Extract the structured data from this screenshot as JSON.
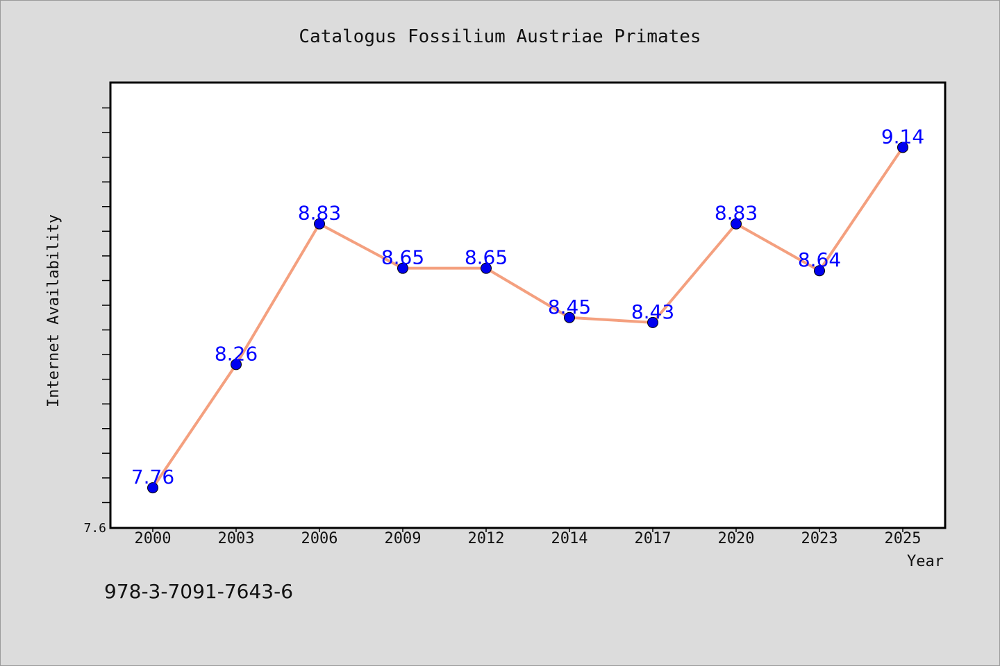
{
  "chart_data": {
    "type": "line",
    "title": "Catalogus Fossilium Austriae Primates",
    "xlabel": "Year",
    "ylabel": "Internet Availability",
    "categories": [
      "2000",
      "2003",
      "2006",
      "2009",
      "2012",
      "2014",
      "2017",
      "2020",
      "2023",
      "2025"
    ],
    "series": [
      {
        "values": [
          7.76,
          8.26,
          8.83,
          8.65,
          8.65,
          8.45,
          8.43,
          8.83,
          8.64,
          9.14
        ]
      }
    ],
    "data_labels": [
      "7.76",
      "8.26",
      "8.83",
      "8.65",
      "8.65",
      "8.45",
      "8.43",
      "8.83",
      "8.64",
      "9.14"
    ],
    "ylim": [
      7.6,
      9.4
    ],
    "ytick_label": "7.6",
    "grid": false,
    "legend": false
  },
  "footer_code": "978-3-7091-7643-6",
  "colors": {
    "background": "#dcdcdc",
    "plot_area": "#ffffff",
    "line": "#f4a07f",
    "marker": "#0000ee",
    "data_label": "#0000ff"
  }
}
